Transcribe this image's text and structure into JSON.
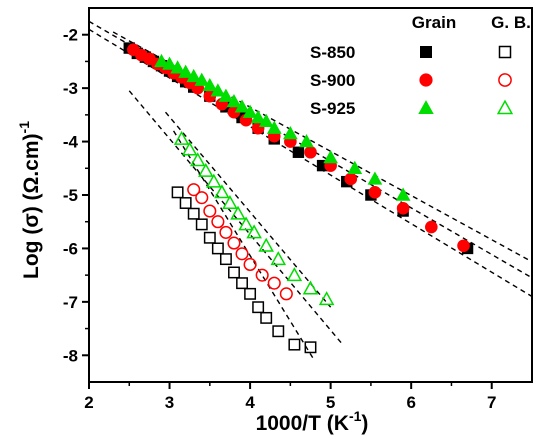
{
  "chart_data": {
    "type": "scatter",
    "title": "",
    "xlabel": "1000/T (K",
    "xlabel_sup": "-1",
    "xlabel_end": ")",
    "ylabel": "Log (σ) (Ω.cm)",
    "ylabel_sup": "-1",
    "xlim": [
      2,
      7.5
    ],
    "ylim": [
      -8.5,
      -1.5
    ],
    "x_ticks": [
      "2",
      "3",
      "4",
      "5",
      "6",
      "7"
    ],
    "y_ticks": [
      "-2",
      "-3",
      "-4",
      "-5",
      "-6",
      "-7",
      "-8"
    ],
    "grid": false,
    "legend": {
      "position": "top-right",
      "column_headers": [
        "Grain",
        "G. B."
      ],
      "rows": [
        "S-850",
        "S-900",
        "S-925"
      ]
    },
    "series": [
      {
        "name": "S-850",
        "group": "Grain",
        "marker": "square",
        "filled": true,
        "color": "#000000",
        "x": [
          2.5,
          2.6,
          2.7,
          2.8,
          2.9,
          3.0,
          3.1,
          3.2,
          3.3,
          3.5,
          3.7,
          3.9,
          4.1,
          4.3,
          4.6,
          4.9,
          5.2,
          5.5,
          5.9,
          6.7
        ],
        "y": [
          -2.25,
          -2.35,
          -2.42,
          -2.5,
          -2.58,
          -2.68,
          -2.78,
          -2.88,
          -2.98,
          -3.15,
          -3.35,
          -3.55,
          -3.75,
          -3.95,
          -4.2,
          -4.45,
          -4.75,
          -5.0,
          -5.3,
          -6.0
        ]
      },
      {
        "name": "S-900",
        "group": "Grain",
        "marker": "circle",
        "filled": true,
        "color": "#ff0000",
        "x": [
          2.55,
          2.65,
          2.75,
          2.85,
          2.95,
          3.05,
          3.15,
          3.25,
          3.35,
          3.5,
          3.65,
          3.8,
          3.95,
          4.1,
          4.3,
          4.5,
          4.75,
          5.0,
          5.25,
          5.55,
          5.9,
          6.25,
          6.65
        ],
        "y": [
          -2.28,
          -2.38,
          -2.45,
          -2.55,
          -2.62,
          -2.72,
          -2.8,
          -2.9,
          -3.0,
          -3.15,
          -3.3,
          -3.45,
          -3.6,
          -3.75,
          -3.9,
          -4.0,
          -4.2,
          -4.45,
          -4.7,
          -4.95,
          -5.25,
          -5.6,
          -5.95
        ]
      },
      {
        "name": "S-925",
        "group": "Grain",
        "marker": "triangle",
        "filled": true,
        "color": "#00dd00",
        "x": [
          2.9,
          3.0,
          3.1,
          3.2,
          3.3,
          3.4,
          3.5,
          3.6,
          3.7,
          3.8,
          3.9,
          4.0,
          4.1,
          4.2,
          4.3,
          4.5,
          4.7,
          5.0,
          5.3,
          5.55,
          5.9
        ],
        "y": [
          -2.5,
          -2.55,
          -2.62,
          -2.7,
          -2.78,
          -2.85,
          -2.95,
          -3.05,
          -3.15,
          -3.25,
          -3.35,
          -3.45,
          -3.55,
          -3.62,
          -3.75,
          -3.85,
          -4.0,
          -4.3,
          -4.5,
          -4.7,
          -5.0
        ]
      },
      {
        "name": "S-850",
        "group": "G. B.",
        "marker": "square",
        "filled": false,
        "color": "#000000",
        "x": [
          3.1,
          3.2,
          3.3,
          3.4,
          3.5,
          3.6,
          3.7,
          3.8,
          3.9,
          4.0,
          4.1,
          4.2,
          4.35,
          4.55,
          4.75
        ],
        "y": [
          -4.95,
          -5.15,
          -5.35,
          -5.55,
          -5.8,
          -6.0,
          -6.2,
          -6.45,
          -6.65,
          -6.85,
          -7.1,
          -7.3,
          -7.55,
          -7.8,
          -7.85
        ]
      },
      {
        "name": "S-900",
        "group": "G. B.",
        "marker": "circle",
        "filled": false,
        "color": "#ff0000",
        "x": [
          3.3,
          3.4,
          3.5,
          3.6,
          3.7,
          3.8,
          3.9,
          4.0,
          4.15,
          4.3,
          4.45
        ],
        "y": [
          -4.9,
          -5.05,
          -5.3,
          -5.5,
          -5.7,
          -5.9,
          -6.1,
          -6.3,
          -6.5,
          -6.65,
          -6.85
        ]
      },
      {
        "name": "S-925",
        "group": "G. B.",
        "marker": "triangle",
        "filled": false,
        "color": "#00dd00",
        "x": [
          3.15,
          3.25,
          3.35,
          3.45,
          3.55,
          3.65,
          3.75,
          3.85,
          3.95,
          4.05,
          4.2,
          4.35,
          4.55,
          4.75,
          4.95
        ],
        "y": [
          -3.95,
          -4.15,
          -4.35,
          -4.55,
          -4.75,
          -4.95,
          -5.15,
          -5.35,
          -5.55,
          -5.7,
          -5.95,
          -6.2,
          -6.5,
          -6.75,
          -6.95
        ]
      }
    ],
    "fit_lines": [
      {
        "x": [
          2.0,
          7.5
        ],
        "y": [
          -1.75,
          -6.55
        ]
      },
      {
        "x": [
          2.0,
          7.5
        ],
        "y": [
          -1.9,
          -6.9
        ]
      },
      {
        "x": [
          2.3,
          7.5
        ],
        "y": [
          -1.95,
          -6.25
        ]
      },
      {
        "x": [
          3.05,
          4.8
        ],
        "y": [
          -3.8,
          -8.1
        ]
      },
      {
        "x": [
          2.5,
          5.15
        ],
        "y": [
          -3.05,
          -7.8
        ]
      },
      {
        "x": [
          2.95,
          5.0
        ],
        "y": [
          -3.45,
          -7.1
        ]
      }
    ]
  }
}
